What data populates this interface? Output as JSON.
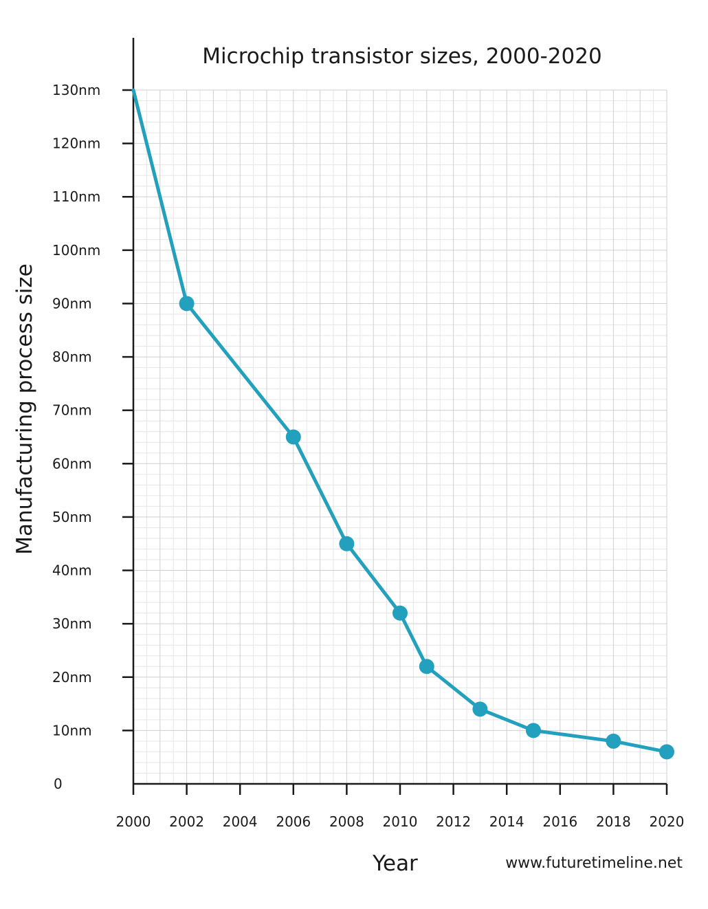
{
  "chart_data": {
    "type": "line",
    "title": "Microchip transistor sizes, 2000-2020",
    "xlabel": "Year",
    "ylabel": "Manufacturing process size",
    "credit": "www.futuretimeline.net",
    "xlim": [
      2000,
      2020
    ],
    "ylim": [
      0,
      130
    ],
    "x_ticks": [
      2000,
      2002,
      2004,
      2006,
      2008,
      2010,
      2012,
      2014,
      2016,
      2018,
      2020
    ],
    "y_ticks": [
      {
        "value": 0,
        "label": "0"
      },
      {
        "value": 10,
        "label": "10nm"
      },
      {
        "value": 20,
        "label": "20nm"
      },
      {
        "value": 30,
        "label": "30nm"
      },
      {
        "value": 40,
        "label": "40nm"
      },
      {
        "value": 50,
        "label": "50nm"
      },
      {
        "value": 60,
        "label": "60nm"
      },
      {
        "value": 70,
        "label": "70nm"
      },
      {
        "value": 80,
        "label": "80nm"
      },
      {
        "value": 90,
        "label": "90nm"
      },
      {
        "value": 100,
        "label": "100nm"
      },
      {
        "value": 110,
        "label": "110nm"
      },
      {
        "value": 120,
        "label": "120nm"
      },
      {
        "value": 130,
        "label": "130nm"
      }
    ],
    "grid": true,
    "legend": "none",
    "series": [
      {
        "color": "#22a0bd",
        "x": [
          2000,
          2002,
          2006,
          2008,
          2010,
          2011,
          2013,
          2015,
          2018,
          2020
        ],
        "y": [
          130,
          90,
          65,
          45,
          32,
          22,
          14,
          10,
          8,
          6
        ],
        "markers": [
          false,
          true,
          true,
          true,
          true,
          true,
          true,
          true,
          true,
          true
        ]
      }
    ]
  }
}
